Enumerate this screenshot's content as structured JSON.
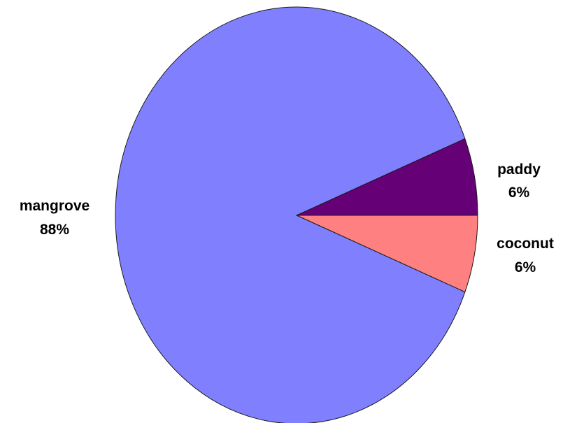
{
  "chart_data": {
    "type": "pie",
    "title": "",
    "slices": [
      {
        "label": "paddy",
        "value": 6,
        "value_label": "6%",
        "color": "#660077"
      },
      {
        "label": "coconut",
        "value": 6,
        "value_label": "6%",
        "color": "#ff8080"
      },
      {
        "label": "mangrove",
        "value": 88,
        "value_label": "88%",
        "color": "#8080ff"
      }
    ],
    "legend": "none",
    "label_placement": "outside"
  }
}
